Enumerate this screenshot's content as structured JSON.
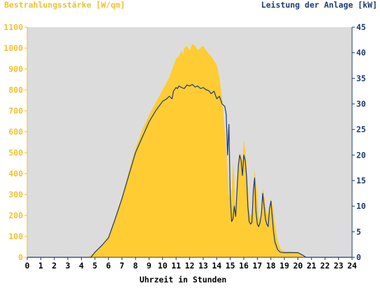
{
  "chart_data": {
    "type": "area",
    "left_axis_title": "Bestrahlungsstärke [W/qm]",
    "right_axis_title": "Leistung der Anlage [kW]",
    "xlabel": "Uhrzeit in Stunden",
    "xlim": [
      0,
      24
    ],
    "ylim_left": [
      0,
      1100
    ],
    "ylim_right": [
      0,
      45
    ],
    "x_ticks": [
      "0",
      "1",
      "2",
      "3",
      "4",
      "5",
      "6",
      "7",
      "8",
      "9",
      "10",
      "11",
      "12",
      "13",
      "14",
      "15",
      "16",
      "17",
      "18",
      "19",
      "20",
      "21",
      "22",
      "23",
      "24"
    ],
    "y_left_ticks": [
      "0",
      "100",
      "200",
      "300",
      "400",
      "500",
      "600",
      "700",
      "800",
      "900",
      "1000",
      "1100"
    ],
    "y_right_ticks": [
      "0",
      "5",
      "10",
      "15",
      "20",
      "25",
      "30",
      "35",
      "40",
      "45"
    ],
    "grid": false,
    "colors": {
      "irradiance_fill": "#ffcc33",
      "power_line": "#1e3a78",
      "plot_background": "#dcdcdc",
      "left_axis": "#f2c12e",
      "right_axis": "#1e3a78"
    },
    "series": [
      {
        "name": "Bestrahlungsstärke [W/qm]",
        "axis": "left",
        "style": "area",
        "x": [
          0,
          4.5,
          5,
          5.5,
          6,
          6.5,
          7,
          7.5,
          8,
          8.5,
          9,
          9.5,
          10,
          10.5,
          11,
          11.2,
          11.4,
          11.5,
          11.6,
          11.8,
          12,
          12.2,
          12.4,
          12.6,
          12.8,
          13,
          13.2,
          13.4,
          13.6,
          13.8,
          14,
          14.2,
          14.4,
          14.6,
          14.8,
          14.9,
          15,
          15.1,
          15.2,
          15.3,
          15.4,
          15.5,
          15.6,
          15.7,
          15.8,
          15.9,
          16,
          16.1,
          16.2,
          16.3,
          16.4,
          16.5,
          16.6,
          16.7,
          16.8,
          16.9,
          17,
          17.1,
          17.2,
          17.3,
          17.4,
          17.5,
          17.6,
          17.7,
          17.8,
          17.9,
          18,
          18.1,
          18.2,
          18.3,
          18.5,
          18.7,
          19,
          19.5,
          20,
          20.3,
          20.5,
          21,
          24
        ],
        "values": [
          0,
          0,
          25,
          60,
          100,
          190,
          290,
          410,
          520,
          610,
          680,
          740,
          800,
          860,
          950,
          960,
          990,
          970,
          1000,
          1010,
          990,
          1020,
          1010,
          990,
          1000,
          1010,
          990,
          975,
          960,
          940,
          920,
          860,
          760,
          600,
          420,
          300,
          280,
          330,
          450,
          380,
          200,
          350,
          470,
          500,
          480,
          460,
          560,
          520,
          450,
          340,
          230,
          200,
          210,
          340,
          420,
          360,
          300,
          200,
          180,
          230,
          330,
          300,
          250,
          220,
          200,
          230,
          280,
          260,
          220,
          160,
          80,
          40,
          30,
          30,
          25,
          10,
          0,
          0,
          0
        ]
      },
      {
        "name": "Leistung der Anlage [kW]",
        "axis": "right",
        "style": "line",
        "x": [
          0,
          4.7,
          5,
          5.5,
          6,
          6.5,
          7,
          7.5,
          8,
          8.5,
          9,
          9.5,
          10,
          10.3,
          10.5,
          10.7,
          10.8,
          11,
          11.1,
          11.2,
          11.4,
          11.6,
          11.8,
          12,
          12.2,
          12.4,
          12.6,
          12.8,
          13,
          13.2,
          13.4,
          13.6,
          13.8,
          14,
          14.2,
          14.4,
          14.6,
          14.7,
          14.8,
          14.9,
          15,
          15.1,
          15.2,
          15.3,
          15.4,
          15.5,
          15.6,
          15.7,
          15.8,
          15.9,
          16,
          16.1,
          16.2,
          16.3,
          16.4,
          16.5,
          16.6,
          16.7,
          16.8,
          16.9,
          17,
          17.1,
          17.2,
          17.3,
          17.4,
          17.5,
          17.6,
          17.7,
          17.8,
          17.9,
          18,
          18.1,
          18.2,
          18.3,
          18.5,
          18.7,
          19,
          19.5,
          20,
          20.3,
          20.6,
          21,
          24
        ],
        "values": [
          0,
          0,
          1,
          2.3,
          3.8,
          7.5,
          11.5,
          16,
          20.5,
          23.5,
          26.5,
          28.7,
          30.5,
          31,
          31.5,
          31,
          32.5,
          33.2,
          33,
          33.5,
          33.2,
          33,
          33.7,
          33.5,
          33.8,
          33.3,
          33.5,
          33,
          33.2,
          32.8,
          32.6,
          32,
          32.5,
          31,
          31.5,
          30,
          29.5,
          28,
          20,
          26,
          12,
          7,
          7.5,
          10,
          8,
          13,
          18,
          20,
          19,
          16,
          20,
          19,
          16,
          10,
          7,
          6.5,
          6.8,
          13,
          15.5,
          9,
          6.5,
          6,
          6.8,
          8.5,
          12.5,
          10,
          7.5,
          6.5,
          6,
          9.5,
          11,
          8,
          5,
          3,
          1.5,
          1,
          0.9,
          0.9,
          0.9,
          0.5,
          0,
          0,
          0
        ]
      }
    ]
  }
}
